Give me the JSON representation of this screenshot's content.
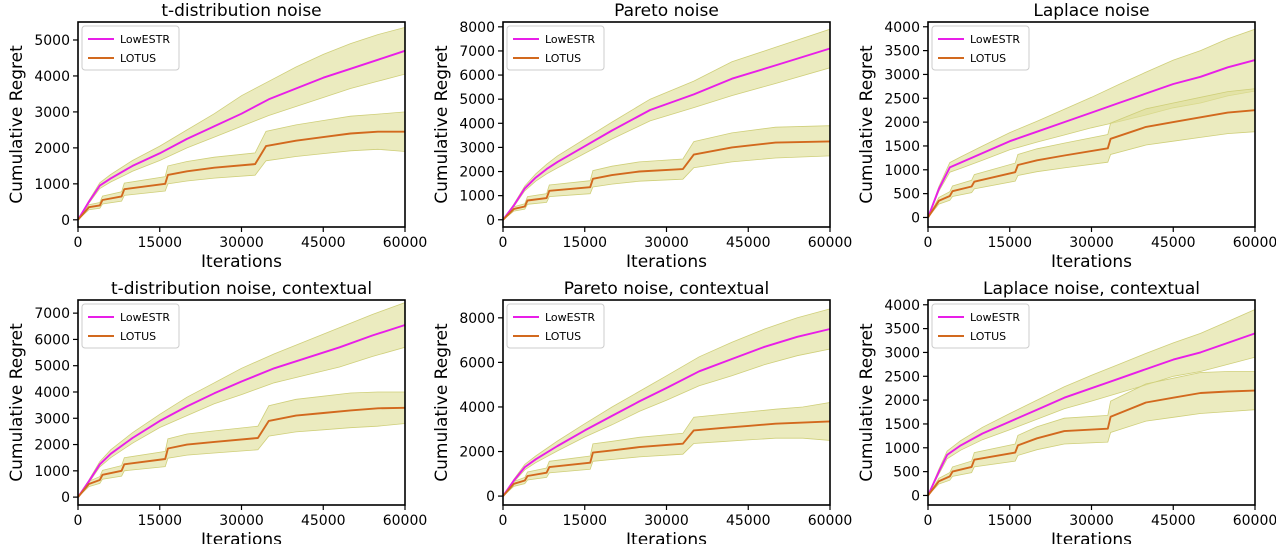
{
  "colors": {
    "lowestr": "#e81ee8",
    "lotus": "#d2691e",
    "band_fill": "#dede98",
    "band_stroke": "#cfcf7a"
  },
  "chart_data": [
    {
      "type": "line",
      "title": "t-distribution noise",
      "xlabel": "Iterations",
      "ylabel": "Cumulative Regret",
      "xlim": [
        0,
        60000
      ],
      "ylim": [
        -200,
        5500
      ],
      "xticks": [
        0,
        15000,
        30000,
        45000,
        60000
      ],
      "yticks": [
        0,
        1000,
        2000,
        3000,
        4000,
        5000
      ],
      "legend_position": "top-left",
      "series": [
        {
          "name": "LowESTR",
          "x": [
            0,
            2000,
            4000,
            6000,
            10000,
            15000,
            20000,
            25000,
            30000,
            35000,
            40000,
            45000,
            50000,
            55000,
            60000
          ],
          "y": [
            0,
            500,
            950,
            1150,
            1500,
            1850,
            2250,
            2600,
            2950,
            3350,
            3650,
            3950,
            4200,
            4450,
            4700
          ],
          "band_upper": [
            0,
            540,
            1030,
            1260,
            1650,
            2050,
            2500,
            2950,
            3450,
            3850,
            4250,
            4600,
            4900,
            5150,
            5350
          ],
          "band_lower": [
            0,
            460,
            870,
            1050,
            1350,
            1650,
            2000,
            2300,
            2600,
            2900,
            3150,
            3400,
            3650,
            3850,
            4050
          ]
        },
        {
          "name": "LOTUS",
          "x": [
            0,
            2000,
            4000,
            4500,
            8000,
            8500,
            16000,
            16500,
            20000,
            25000,
            32500,
            34500,
            40000,
            45000,
            50000,
            55000,
            60000
          ],
          "y": [
            0,
            350,
            400,
            550,
            650,
            850,
            1000,
            1250,
            1350,
            1450,
            1550,
            2050,
            2200,
            2300,
            2400,
            2450,
            2450
          ],
          "band_upper": [
            0,
            420,
            480,
            660,
            780,
            1020,
            1200,
            1500,
            1620,
            1740,
            1860,
            2460,
            2640,
            2760,
            2880,
            2940,
            3000
          ],
          "band_lower": [
            0,
            280,
            320,
            440,
            520,
            680,
            800,
            1000,
            1080,
            1160,
            1240,
            1640,
            1760,
            1840,
            1920,
            1960,
            1900
          ]
        }
      ]
    },
    {
      "type": "line",
      "title": "Pareto noise",
      "xlabel": "Iterations",
      "ylabel": "Cumulative Regret",
      "xlim": [
        0,
        60000
      ],
      "ylim": [
        -300,
        8200
      ],
      "xticks": [
        0,
        15000,
        30000,
        45000,
        60000
      ],
      "yticks": [
        0,
        1000,
        2000,
        3000,
        4000,
        5000,
        6000,
        7000,
        8000
      ],
      "legend_position": "top-left",
      "series": [
        {
          "name": "LowESTR",
          "x": [
            0,
            2000,
            4000,
            6000,
            8000,
            10000,
            15000,
            20000,
            27000,
            35000,
            42000,
            50000,
            60000
          ],
          "y": [
            0,
            600,
            1300,
            1750,
            2100,
            2400,
            3050,
            3700,
            4550,
            5200,
            5850,
            6400,
            7100
          ],
          "band_upper": [
            0,
            650,
            1400,
            1900,
            2300,
            2650,
            3350,
            4050,
            5000,
            5750,
            6550,
            7150,
            7900
          ],
          "band_lower": [
            0,
            550,
            1200,
            1600,
            1900,
            2150,
            2750,
            3350,
            4100,
            4650,
            5150,
            5650,
            6300
          ]
        },
        {
          "name": "LOTUS",
          "x": [
            0,
            2000,
            4000,
            4500,
            8000,
            8500,
            16000,
            16500,
            20000,
            25000,
            33000,
            35000,
            42000,
            50000,
            60000
          ],
          "y": [
            0,
            450,
            550,
            800,
            900,
            1200,
            1350,
            1700,
            1850,
            2000,
            2100,
            2700,
            3000,
            3200,
            3250
          ],
          "band_upper": [
            0,
            540,
            660,
            960,
            1080,
            1440,
            1620,
            2040,
            2220,
            2400,
            2520,
            3240,
            3600,
            3840,
            3900
          ],
          "band_lower": [
            0,
            360,
            440,
            640,
            720,
            960,
            1080,
            1360,
            1480,
            1600,
            1680,
            2160,
            2400,
            2560,
            2650
          ]
        }
      ]
    },
    {
      "type": "line",
      "title": "Laplace noise",
      "xlabel": "Iterations",
      "ylabel": "Cumulative Regret",
      "xlim": [
        0,
        60000
      ],
      "ylim": [
        -200,
        4100
      ],
      "xticks": [
        0,
        15000,
        30000,
        45000,
        60000
      ],
      "yticks": [
        0,
        500,
        1000,
        1500,
        2000,
        2500,
        3000,
        3500,
        4000
      ],
      "legend_position": "top-left",
      "series": [
        {
          "name": "LowESTR",
          "x": [
            0,
            2000,
            4000,
            6000,
            10000,
            15000,
            20000,
            25000,
            30000,
            35000,
            40000,
            45000,
            50000,
            55000,
            60000
          ],
          "y": [
            0,
            600,
            1050,
            1150,
            1350,
            1600,
            1800,
            2000,
            2200,
            2400,
            2600,
            2800,
            2950,
            3150,
            3300
          ],
          "band_upper": [
            0,
            650,
            1150,
            1270,
            1500,
            1780,
            2020,
            2270,
            2520,
            2790,
            3050,
            3300,
            3500,
            3750,
            3950
          ],
          "band_lower": [
            0,
            550,
            950,
            1030,
            1200,
            1420,
            1580,
            1730,
            1880,
            2010,
            2150,
            2300,
            2400,
            2550,
            2650
          ]
        },
        {
          "name": "LOTUS",
          "x": [
            0,
            2000,
            4000,
            4500,
            8000,
            8500,
            16000,
            16500,
            20000,
            25000,
            33000,
            33500,
            40000,
            45000,
            50000,
            55000,
            60000
          ],
          "y": [
            0,
            350,
            450,
            550,
            650,
            750,
            950,
            1100,
            1200,
            1300,
            1450,
            1650,
            1900,
            2000,
            2100,
            2200,
            2250
          ],
          "band_upper": [
            0,
            420,
            540,
            660,
            780,
            900,
            1140,
            1320,
            1440,
            1560,
            1740,
            1980,
            2280,
            2400,
            2520,
            2640,
            2700
          ],
          "band_lower": [
            0,
            280,
            360,
            440,
            520,
            600,
            760,
            880,
            960,
            1040,
            1160,
            1320,
            1520,
            1600,
            1680,
            1760,
            1800
          ]
        }
      ]
    },
    {
      "type": "line",
      "title": "t-distribution noise, contextual",
      "xlabel": "Iterations",
      "ylabel": "Cumulative Regret",
      "xlim": [
        0,
        60000
      ],
      "ylim": [
        -300,
        7500
      ],
      "xticks": [
        0,
        15000,
        30000,
        45000,
        60000
      ],
      "yticks": [
        0,
        1000,
        2000,
        3000,
        4000,
        5000,
        6000,
        7000
      ],
      "legend_position": "top-left",
      "series": [
        {
          "name": "LowESTR",
          "x": [
            0,
            2000,
            4000,
            6000,
            10000,
            15000,
            20000,
            25000,
            30000,
            36000,
            42000,
            48000,
            54000,
            60000
          ],
          "y": [
            0,
            600,
            1250,
            1650,
            2250,
            2900,
            3450,
            3950,
            4400,
            4900,
            5300,
            5700,
            6150,
            6550
          ],
          "band_upper": [
            0,
            650,
            1350,
            1800,
            2450,
            3150,
            3800,
            4350,
            4900,
            5450,
            5950,
            6450,
            6950,
            7400
          ],
          "band_lower": [
            0,
            550,
            1150,
            1500,
            2050,
            2650,
            3100,
            3550,
            3900,
            4350,
            4650,
            4950,
            5350,
            5700
          ]
        },
        {
          "name": "LOTUS",
          "x": [
            0,
            2000,
            4000,
            4500,
            8000,
            8500,
            16000,
            16500,
            20000,
            25000,
            33000,
            35000,
            40000,
            45000,
            50000,
            55000,
            60000
          ],
          "y": [
            0,
            500,
            650,
            850,
            1000,
            1250,
            1450,
            1850,
            2000,
            2100,
            2250,
            2900,
            3100,
            3200,
            3300,
            3380,
            3400
          ],
          "band_upper": [
            0,
            600,
            780,
            1020,
            1200,
            1500,
            1740,
            2220,
            2400,
            2520,
            2700,
            3480,
            3720,
            3840,
            3960,
            4000,
            4000
          ],
          "band_lower": [
            0,
            400,
            520,
            680,
            800,
            1000,
            1160,
            1480,
            1600,
            1680,
            1800,
            2320,
            2480,
            2560,
            2640,
            2700,
            2800
          ]
        }
      ]
    },
    {
      "type": "line",
      "title": "Pareto noise, contextual",
      "xlabel": "Iterations",
      "ylabel": "Cumulative Regret",
      "xlim": [
        0,
        60000
      ],
      "ylim": [
        -400,
        8800
      ],
      "xticks": [
        0,
        15000,
        30000,
        45000,
        60000
      ],
      "yticks": [
        0,
        2000,
        4000,
        6000,
        8000
      ],
      "legend_position": "top-left",
      "series": [
        {
          "name": "LowESTR",
          "x": [
            0,
            2000,
            4000,
            6000,
            10000,
            15000,
            20000,
            25000,
            30000,
            36000,
            42000,
            48000,
            54000,
            60000
          ],
          "y": [
            0,
            700,
            1300,
            1650,
            2250,
            2950,
            3600,
            4250,
            4850,
            5600,
            6150,
            6700,
            7150,
            7500
          ],
          "band_upper": [
            0,
            760,
            1420,
            1800,
            2470,
            3250,
            4000,
            4700,
            5400,
            6250,
            6900,
            7500,
            8000,
            8400
          ],
          "band_lower": [
            0,
            640,
            1180,
            1500,
            2030,
            2650,
            3200,
            3800,
            4300,
            4950,
            5400,
            5900,
            6300,
            6600
          ]
        },
        {
          "name": "LOTUS",
          "x": [
            0,
            2000,
            4000,
            4500,
            8000,
            8500,
            16000,
            16500,
            20000,
            25000,
            33000,
            35000,
            40000,
            45000,
            50000,
            55000,
            60000
          ],
          "y": [
            0,
            550,
            700,
            900,
            1050,
            1300,
            1500,
            1950,
            2050,
            2200,
            2350,
            2950,
            3050,
            3150,
            3250,
            3300,
            3350
          ],
          "band_upper": [
            0,
            660,
            840,
            1080,
            1260,
            1560,
            1800,
            2340,
            2460,
            2640,
            2820,
            3540,
            3660,
            3780,
            3900,
            4000,
            4200
          ],
          "band_lower": [
            0,
            440,
            560,
            720,
            840,
            1040,
            1200,
            1560,
            1640,
            1760,
            1880,
            2360,
            2440,
            2520,
            2600,
            2600,
            2500
          ]
        }
      ]
    },
    {
      "type": "line",
      "title": "Laplace noise, contextual",
      "xlabel": "Iterations",
      "ylabel": "Cumulative Regret",
      "xlim": [
        0,
        60000
      ],
      "ylim": [
        -200,
        4100
      ],
      "xticks": [
        0,
        15000,
        30000,
        45000,
        60000
      ],
      "yticks": [
        0,
        500,
        1000,
        1500,
        2000,
        2500,
        3000,
        3500,
        4000
      ],
      "legend_position": "top-left",
      "series": [
        {
          "name": "LowESTR",
          "x": [
            0,
            2000,
            3500,
            6000,
            10000,
            15000,
            20000,
            25000,
            30000,
            35000,
            40000,
            45000,
            50000,
            55000,
            60000
          ],
          "y": [
            0,
            500,
            850,
            1050,
            1300,
            1550,
            1800,
            2050,
            2250,
            2450,
            2650,
            2850,
            3000,
            3200,
            3400
          ],
          "band_upper": [
            0,
            550,
            930,
            1150,
            1430,
            1720,
            2000,
            2280,
            2520,
            2750,
            2980,
            3200,
            3400,
            3650,
            3900
          ],
          "band_lower": [
            0,
            450,
            770,
            950,
            1170,
            1380,
            1600,
            1820,
            1980,
            2150,
            2320,
            2500,
            2600,
            2750,
            2900
          ]
        },
        {
          "name": "LOTUS",
          "x": [
            0,
            2000,
            4000,
            4500,
            8000,
            8500,
            16000,
            16500,
            20000,
            25000,
            33000,
            33500,
            40000,
            45000,
            50000,
            55000,
            60000
          ],
          "y": [
            0,
            300,
            400,
            500,
            600,
            750,
            900,
            1050,
            1200,
            1350,
            1400,
            1650,
            1950,
            2050,
            2150,
            2180,
            2200
          ],
          "band_upper": [
            0,
            360,
            480,
            600,
            720,
            900,
            1080,
            1260,
            1440,
            1620,
            1680,
            1980,
            2340,
            2460,
            2580,
            2600,
            2600
          ],
          "band_lower": [
            0,
            240,
            320,
            400,
            480,
            600,
            720,
            840,
            960,
            1080,
            1120,
            1320,
            1560,
            1640,
            1720,
            1760,
            1800
          ]
        }
      ]
    }
  ]
}
